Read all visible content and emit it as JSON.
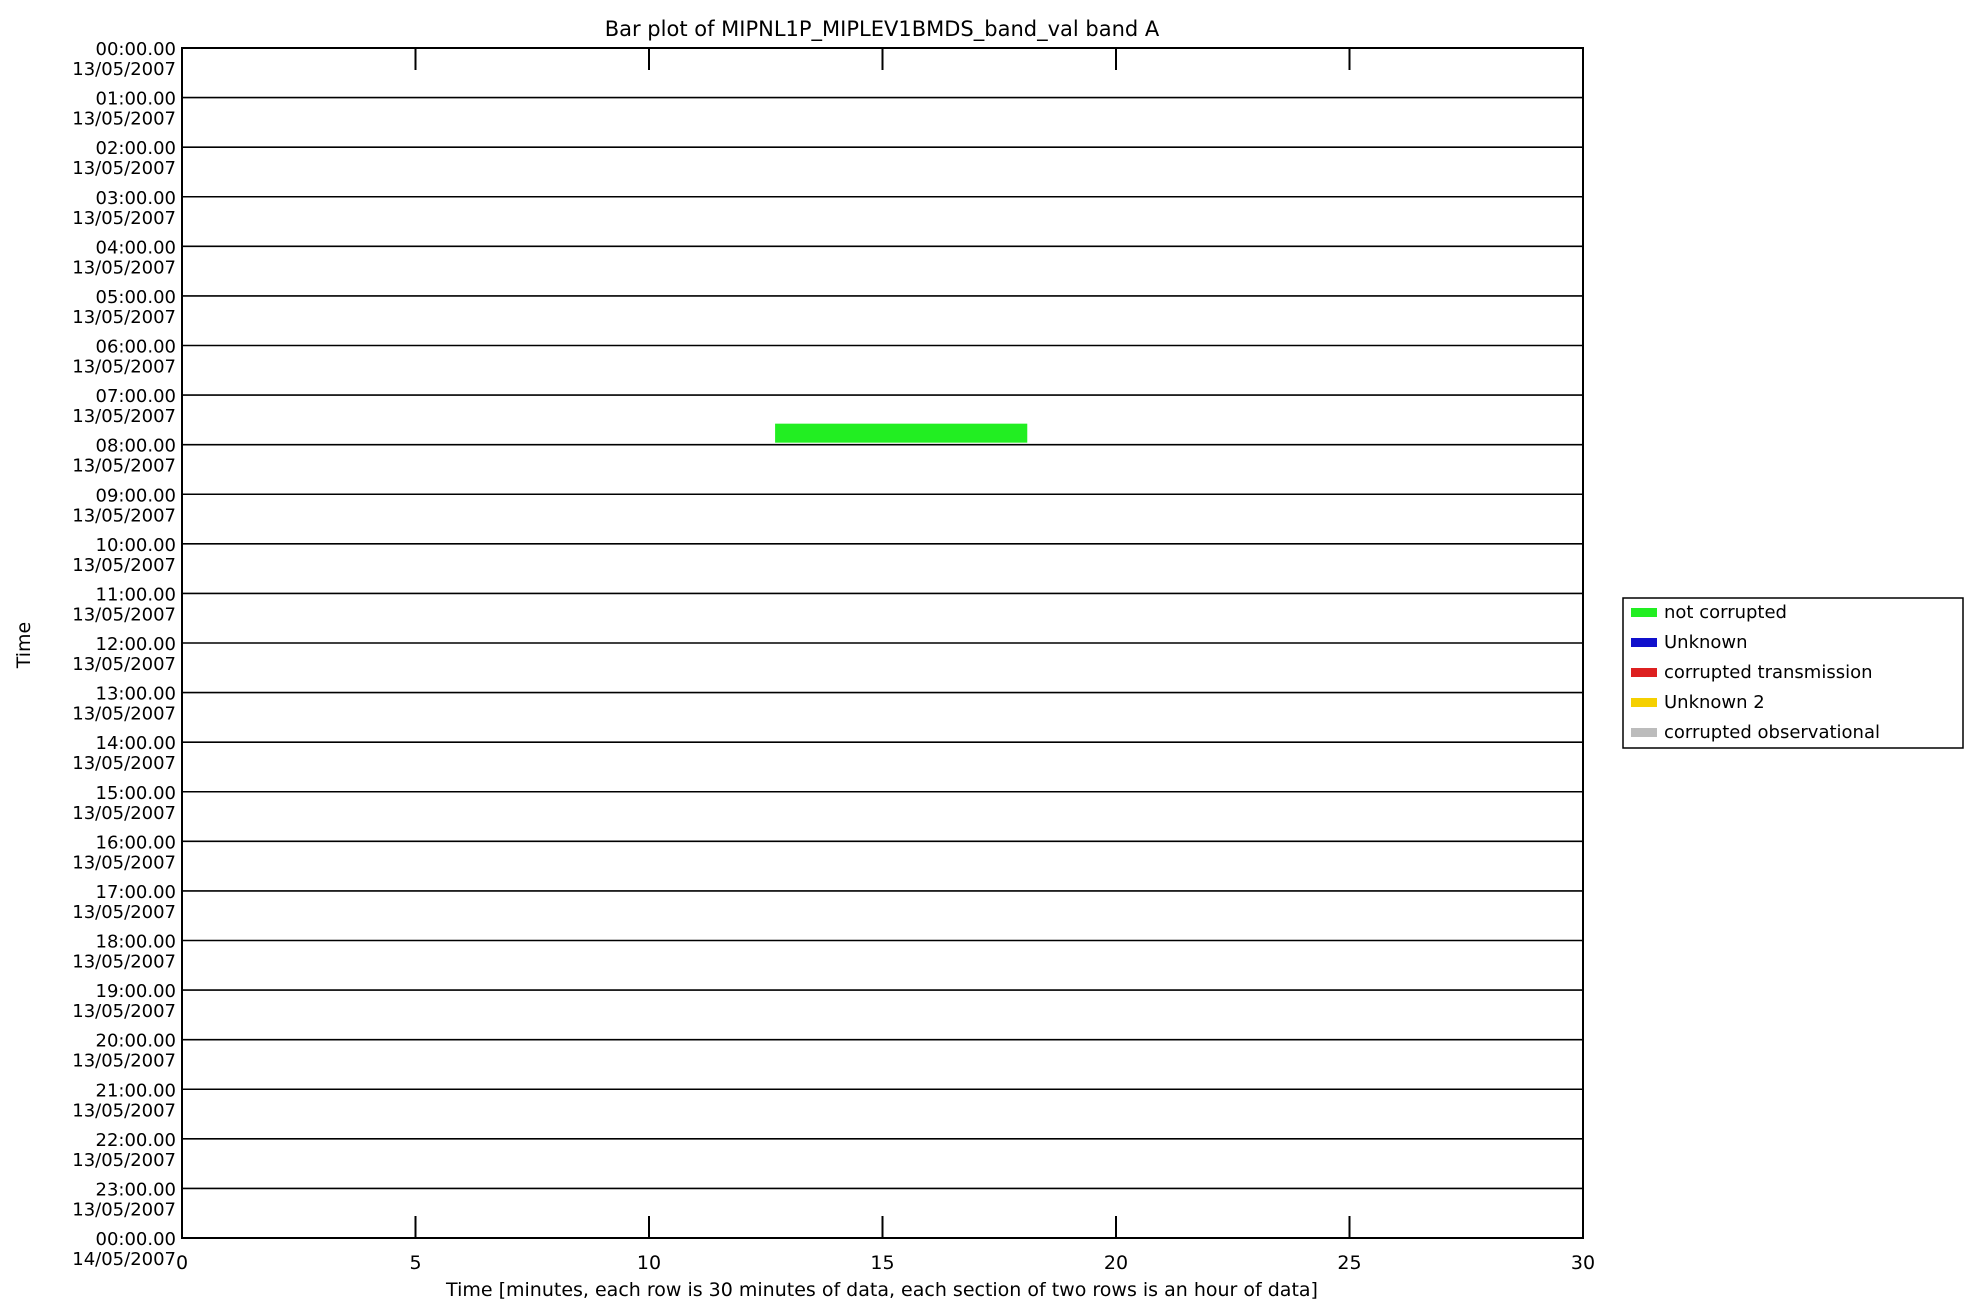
{
  "chart_data": {
    "type": "bar",
    "title": "Bar plot of MIPNL1P_MIPLEV1BMDS_band_val band A",
    "xlabel": "Time [minutes, each row is 30 minutes of data, each section of two rows is an hour of data]",
    "ylabel": "Time",
    "xlim": [
      0,
      30
    ],
    "xticks": [
      "0",
      "5",
      "10",
      "15",
      "20",
      "25",
      "30"
    ],
    "row_count": 24,
    "yticks": [
      {
        "time": "00:00.00",
        "date": "13/05/2007"
      },
      {
        "time": "01:00.00",
        "date": "13/05/2007"
      },
      {
        "time": "02:00.00",
        "date": "13/05/2007"
      },
      {
        "time": "03:00.00",
        "date": "13/05/2007"
      },
      {
        "time": "04:00.00",
        "date": "13/05/2007"
      },
      {
        "time": "05:00.00",
        "date": "13/05/2007"
      },
      {
        "time": "06:00.00",
        "date": "13/05/2007"
      },
      {
        "time": "07:00.00",
        "date": "13/05/2007"
      },
      {
        "time": "08:00.00",
        "date": "13/05/2007"
      },
      {
        "time": "09:00.00",
        "date": "13/05/2007"
      },
      {
        "time": "10:00.00",
        "date": "13/05/2007"
      },
      {
        "time": "11:00.00",
        "date": "13/05/2007"
      },
      {
        "time": "12:00.00",
        "date": "13/05/2007"
      },
      {
        "time": "13:00.00",
        "date": "13/05/2007"
      },
      {
        "time": "14:00.00",
        "date": "13/05/2007"
      },
      {
        "time": "15:00.00",
        "date": "13/05/2007"
      },
      {
        "time": "16:00.00",
        "date": "13/05/2007"
      },
      {
        "time": "17:00.00",
        "date": "13/05/2007"
      },
      {
        "time": "18:00.00",
        "date": "13/05/2007"
      },
      {
        "time": "19:00.00",
        "date": "13/05/2007"
      },
      {
        "time": "20:00.00",
        "date": "13/05/2007"
      },
      {
        "time": "21:00.00",
        "date": "13/05/2007"
      },
      {
        "time": "22:00.00",
        "date": "13/05/2007"
      },
      {
        "time": "23:00.00",
        "date": "13/05/2007"
      },
      {
        "time": "00:00.00",
        "date": "14/05/2007"
      }
    ],
    "legend": {
      "position": "right",
      "entries": [
        {
          "name": "not corrupted",
          "color": "#22ee22"
        },
        {
          "name": "Unknown",
          "color": "#1010cc"
        },
        {
          "name": "corrupted transmission",
          "color": "#dd2020"
        },
        {
          "name": "Unknown 2",
          "color": "#f5d000"
        },
        {
          "name": "corrupted observational",
          "color": "#bcbcbc"
        }
      ]
    },
    "bars": [
      {
        "row": 7,
        "start_min": 12.7,
        "end_min": 18.1,
        "status": "not corrupted",
        "color": "#22ee22"
      }
    ]
  }
}
